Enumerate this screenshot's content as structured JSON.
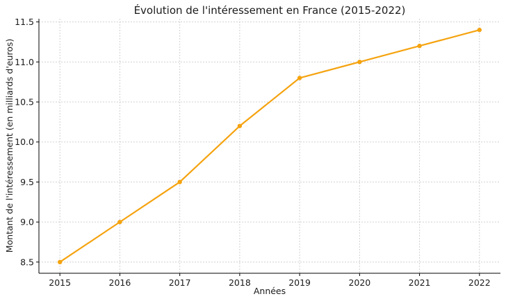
{
  "chart_data": {
    "type": "line",
    "title": "Évolution de l'intéressement en France (2015-2022)",
    "xlabel": "Années",
    "ylabel": "Montant de l'intéressement (en milliards d'euros)",
    "x": [
      2015,
      2016,
      2017,
      2018,
      2019,
      2020,
      2021,
      2022
    ],
    "series": [
      {
        "values": [
          8.5,
          9.0,
          9.5,
          10.2,
          10.8,
          11.0,
          11.2,
          11.4
        ]
      }
    ],
    "xticks": [
      "2015",
      "2016",
      "2017",
      "2018",
      "2019",
      "2020",
      "2021",
      "2022"
    ],
    "yticks": [
      "8.5",
      "9.0",
      "9.5",
      "10.0",
      "10.5",
      "11.0",
      "11.5"
    ],
    "ylim": [
      8.36,
      11.54
    ],
    "xlim": [
      2014.65,
      2022.35
    ],
    "grid": true,
    "colors": {
      "line": "#f5a30f"
    }
  }
}
